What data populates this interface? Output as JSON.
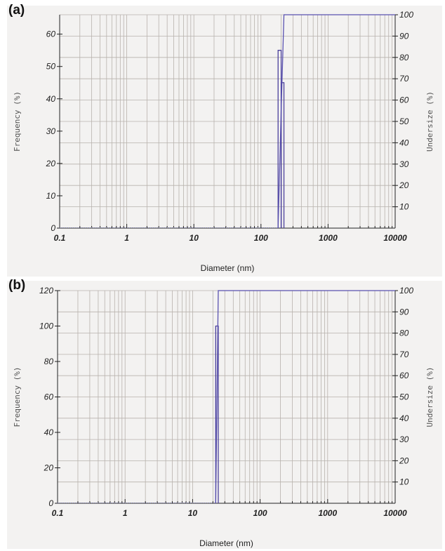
{
  "chart_data": [
    {
      "panel_label": "(a)",
      "type": "line",
      "xlabel": "Diameter (nm)",
      "ylabel_left": "Frequency (%)",
      "ylabel_right": "Undersize (%)",
      "x_scale": "log",
      "xlim": [
        0.1,
        10000
      ],
      "ylim_left": [
        0,
        66
      ],
      "ylim_right": [
        0,
        100
      ],
      "x_tick_labels": [
        "0.1",
        "1",
        "10",
        "100",
        "1000",
        "10000"
      ],
      "y_left_tick_labels": [
        "0",
        "10",
        "20",
        "30",
        "40",
        "50",
        "60"
      ],
      "y_right_tick_labels": [
        "10",
        "20",
        "30",
        "40",
        "50",
        "60",
        "70",
        "80",
        "90",
        "100"
      ],
      "grid": true,
      "series": [
        {
          "axis": "left",
          "style": "histogram",
          "bins": [
            [
              180,
              200,
              55
            ],
            [
              200,
              220,
              45
            ]
          ]
        },
        {
          "axis": "right",
          "style": "cumulative",
          "x": [
            180,
            200,
            220,
            10000
          ],
          "y": [
            0,
            55,
            100,
            100
          ]
        }
      ]
    },
    {
      "panel_label": "(b)",
      "type": "line",
      "xlabel": "Diameter (nm)",
      "ylabel_left": "Frequency (%)",
      "ylabel_right": "Undersize (%)",
      "x_scale": "log",
      "xlim": [
        0.1,
        10000
      ],
      "ylim_left": [
        0,
        120
      ],
      "ylim_right": [
        0,
        100
      ],
      "x_tick_labels": [
        "0.1",
        "1",
        "10",
        "100",
        "1000",
        "10000"
      ],
      "y_left_tick_labels": [
        "0",
        "20",
        "40",
        "60",
        "80",
        "100",
        "120"
      ],
      "y_right_tick_labels": [
        "10",
        "20",
        "30",
        "40",
        "50",
        "60",
        "70",
        "80",
        "90",
        "100"
      ],
      "grid": true,
      "series": [
        {
          "axis": "left",
          "style": "histogram",
          "bins": [
            [
              22,
              24,
              100
            ]
          ]
        },
        {
          "axis": "right",
          "style": "cumulative",
          "x": [
            22,
            24,
            10000
          ],
          "y": [
            0,
            100,
            100
          ]
        }
      ]
    }
  ]
}
